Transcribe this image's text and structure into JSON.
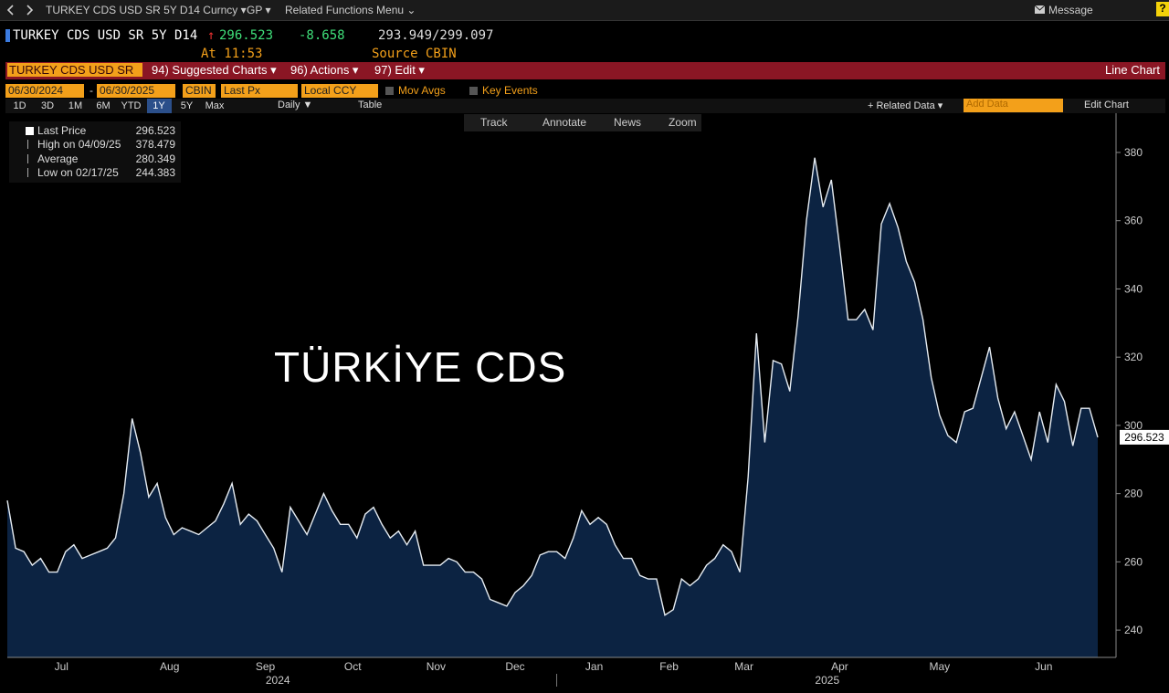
{
  "ui": {
    "topbar": {
      "security": "TURKEY CDS USD SR 5Y D14 Curncy ▾",
      "gp": "GP ▾",
      "related": "Related Functions Menu ⌄",
      "message": "Message",
      "help": "?"
    },
    "quote": {
      "name": "TURKEY CDS USD SR 5Y D14",
      "direction": "↑",
      "last": "296.523",
      "change": "-8.658",
      "range": "293.949/299.097",
      "time": "At 11:53",
      "source": "Source CBIN"
    },
    "menu": {
      "ticker": "TURKEY CDS USD SR",
      "items": [
        "94) Suggested Charts ▾",
        "96) Actions ▾",
        "97) Edit ▾"
      ],
      "chart_type": "Line Chart"
    },
    "controls": {
      "start": "06/30/2024",
      "separator": "-",
      "end": "06/30/2025",
      "source": "CBIN",
      "field": "Last Px",
      "currency": "Local CCY",
      "checks": [
        "Mov Avgs",
        "Key Events"
      ]
    },
    "periods": [
      "1D",
      "3D",
      "1M",
      "6M",
      "YTD",
      "1Y",
      "5Y",
      "Max"
    ],
    "frequency": "Daily ▼",
    "table": "Table",
    "related_data": "+ Related Data ▾",
    "add_data": "Add Data",
    "edit_chart": "Edit Chart",
    "chart_tools": [
      "Track",
      "Annotate",
      "News",
      "Zoom"
    ]
  },
  "chart_data": {
    "type": "area",
    "annotation": "TÜRKİYE CDS",
    "categories": [
      "Jul",
      null,
      null,
      null,
      null,
      null,
      null,
      null,
      null,
      null,
      null,
      null,
      null,
      null,
      "Aug",
      null,
      null,
      null,
      null,
      null,
      null,
      null,
      null,
      null,
      null,
      null,
      "Sep",
      null,
      null,
      null,
      null,
      null,
      null,
      null,
      null,
      null,
      null,
      "Oct",
      null,
      null,
      null,
      null,
      null,
      null,
      null,
      null,
      null,
      "Nov",
      null,
      null,
      null,
      null,
      null,
      null,
      null,
      null,
      null,
      "Dec",
      null,
      null,
      null,
      null,
      null,
      null,
      null,
      null,
      "Jan",
      null,
      null,
      null,
      null,
      null,
      null,
      null,
      null,
      null,
      "Feb",
      null,
      null,
      null,
      null,
      null,
      null,
      null,
      "Mar",
      null,
      null,
      null,
      null,
      null,
      null,
      null,
      null,
      null,
      "Apr",
      null,
      null,
      null,
      null,
      null,
      null,
      null,
      null,
      null,
      null,
      null,
      null,
      "May",
      null,
      null,
      null,
      null,
      null,
      null,
      null,
      null,
      null,
      null,
      "Jun",
      null,
      null,
      null,
      null,
      null,
      null,
      null,
      null,
      null,
      null,
      null,
      null,
      null
    ],
    "year_categories": [
      "2024",
      null,
      null,
      null,
      null,
      null,
      null,
      null,
      null,
      null,
      null,
      null,
      null,
      null,
      null,
      null,
      null,
      null,
      null,
      null,
      null,
      null,
      null,
      null,
      null,
      null,
      null,
      null,
      null,
      null,
      null,
      null,
      null,
      null,
      null,
      null,
      null,
      null,
      null,
      null,
      null,
      null,
      null,
      null,
      null,
      null,
      null,
      null,
      null,
      null,
      null,
      null,
      null,
      null,
      null,
      null,
      null,
      null,
      null,
      null,
      null,
      null,
      null,
      null,
      null,
      null,
      "2025",
      null,
      null,
      null,
      null,
      null,
      null,
      null,
      null,
      null,
      null,
      null,
      null,
      null,
      null,
      null,
      null,
      null,
      null,
      null,
      null,
      null,
      null,
      null,
      null,
      null,
      null,
      null,
      null,
      null,
      null,
      null,
      null,
      null,
      null,
      null,
      null,
      null,
      null,
      null,
      null,
      null,
      null,
      null,
      null,
      null,
      null,
      null,
      null,
      null,
      null,
      null,
      null,
      null,
      null,
      null,
      null,
      null,
      null,
      null,
      null,
      null,
      null,
      null,
      null,
      null
    ],
    "series": [
      {
        "name": "Last Price",
        "color": "#e6ecf2",
        "fill": "#0c2342",
        "values": [
          278,
          264,
          263,
          259,
          261,
          257,
          257,
          263,
          265,
          261,
          262,
          263,
          264,
          267,
          280,
          302,
          292,
          279,
          283,
          273,
          268,
          270,
          269,
          268,
          270,
          272,
          277,
          283,
          271,
          274,
          272,
          268,
          264,
          257,
          276,
          272,
          268,
          274,
          280,
          275,
          271,
          271,
          267,
          274,
          276,
          271,
          267,
          269,
          265,
          269,
          259,
          259,
          259,
          261,
          260,
          257,
          257,
          255,
          249,
          248,
          247,
          251,
          253,
          256,
          262,
          263,
          263,
          261,
          267,
          275,
          271,
          273,
          271,
          265,
          261,
          261,
          256,
          255,
          255,
          244.383,
          246,
          255,
          253,
          255,
          259,
          261,
          265,
          263,
          257,
          285,
          327,
          295,
          319,
          318,
          310,
          332,
          360,
          378.479,
          364,
          372,
          352,
          331,
          331,
          334,
          328,
          359,
          365,
          358,
          348,
          342,
          331,
          314,
          303,
          297,
          295,
          304,
          305,
          314,
          323,
          308,
          299,
          304,
          297,
          290,
          304,
          295,
          312,
          307,
          294,
          305,
          305,
          296.523
        ]
      }
    ],
    "stats": [
      {
        "label": "High on 04/09/25",
        "value": 378.479
      },
      {
        "label": "Average",
        "value": 280.349
      },
      {
        "label": "Low on 02/17/25",
        "value": 244.383
      }
    ],
    "ylim": [
      232,
      391.5
    ],
    "yticks": [
      240,
      260,
      280,
      300,
      320,
      340,
      360,
      380
    ],
    "grid": false,
    "axis_side": "right"
  }
}
